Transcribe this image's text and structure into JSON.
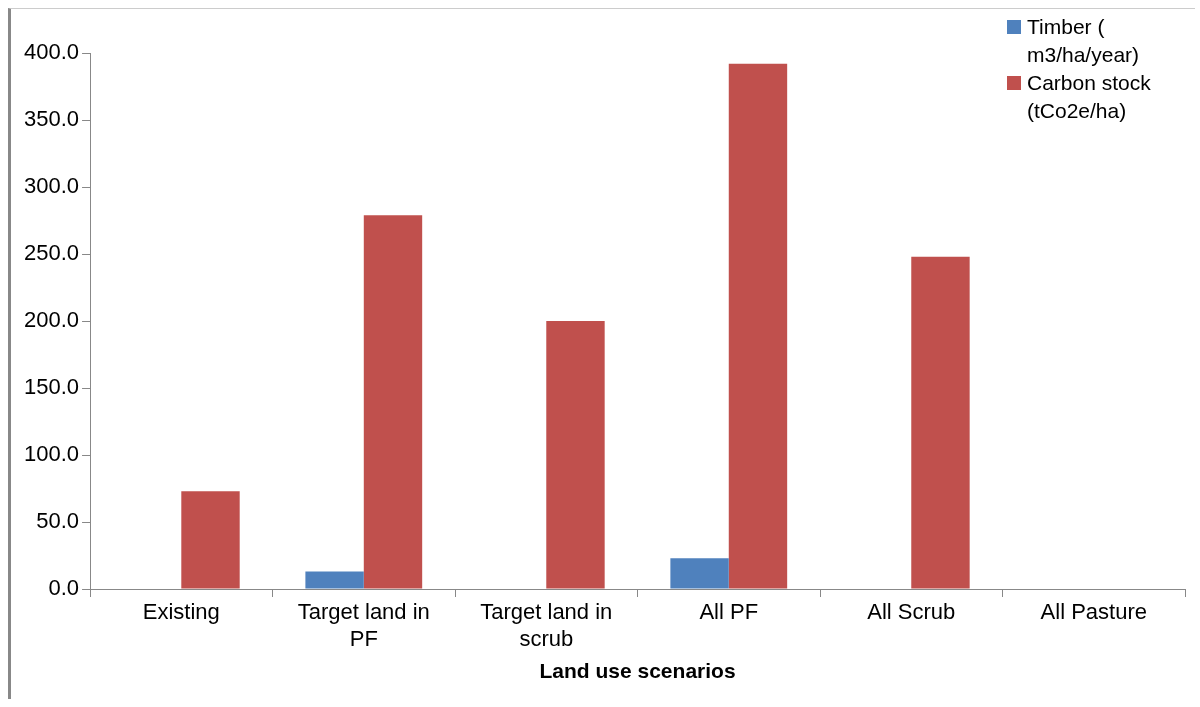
{
  "chart_data": {
    "type": "bar",
    "xlabel": "Land use scenarios",
    "categories": [
      "Existing",
      "Target land in PF",
      "Target land in scrub",
      "All PF",
      "All Scrub",
      "All Pasture"
    ],
    "series": [
      {
        "name": "Timber ( m3/ha/year)",
        "color": "#4f81bd",
        "values": [
          0,
          13,
          0,
          23,
          0,
          0
        ]
      },
      {
        "name": "Carbon stock (tCo2e/ha)",
        "color": "#c0504d",
        "values": [
          73,
          279,
          200,
          392,
          248,
          0
        ]
      }
    ],
    "ylim": [
      0,
      400
    ],
    "yticks": [
      {
        "value": 0,
        "label": "0.0"
      },
      {
        "value": 50,
        "label": "50.0"
      },
      {
        "value": 100,
        "label": "100.0"
      },
      {
        "value": 150,
        "label": "150.0"
      },
      {
        "value": 200,
        "label": "200.0"
      },
      {
        "value": 250,
        "label": "250.0"
      },
      {
        "value": 300,
        "label": "300.0"
      },
      {
        "value": 350,
        "label": "350.0"
      },
      {
        "value": 400,
        "label": "400.0"
      }
    ],
    "grid": false,
    "legend": "top right"
  }
}
